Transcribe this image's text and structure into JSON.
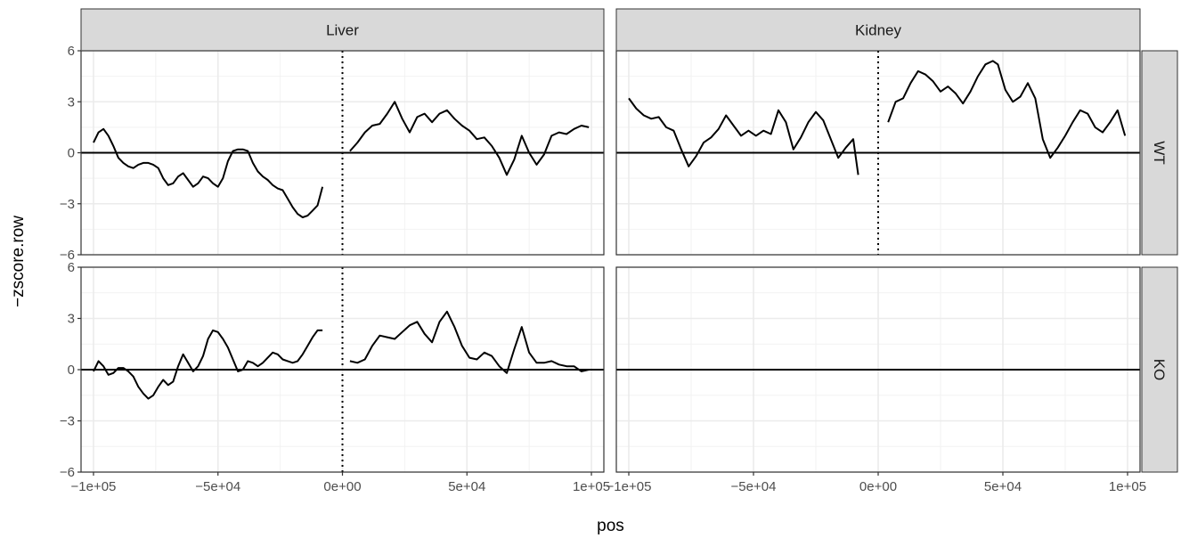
{
  "chart_data": {
    "type": "line",
    "xlabel": "pos",
    "ylabel": "−zscore.row",
    "xlim": [
      -105000,
      105000
    ],
    "ylim": [
      -6,
      6
    ],
    "x_ticks": [
      -100000,
      -50000,
      0,
      50000,
      100000
    ],
    "x_tick_labels": [
      "−1e+05",
      "−5e+04",
      "0e+00",
      "5e+04",
      "1e+05"
    ],
    "y_ticks": [
      -6,
      -3,
      0,
      3,
      6
    ],
    "y_tick_labels": [
      "−6",
      "−3",
      "0",
      "3",
      "6"
    ],
    "grid": true,
    "hline": 0,
    "vline": 0,
    "facet_columns": [
      "Liver",
      "Kidney"
    ],
    "facet_rows": [
      "WT",
      "KO"
    ],
    "panels": [
      {
        "column": "Liver",
        "row": "WT",
        "series": [
          {
            "x": [
              -100000,
              -98000,
              -96000,
              -94000,
              -92000,
              -90000,
              -88000,
              -86000,
              -84000,
              -82000,
              -80000,
              -78000,
              -76000,
              -74000,
              -72000,
              -70000,
              -68000,
              -66000,
              -64000,
              -62000,
              -60000,
              -58000,
              -56000,
              -54000,
              -52000,
              -50000,
              -48000,
              -46000,
              -44000,
              -42000,
              -40000,
              -38000,
              -36000,
              -34000,
              -32000,
              -30000,
              -28000,
              -26000,
              -24000,
              -22000,
              -20000,
              -18000,
              -16000,
              -14000,
              -12000,
              -10000,
              -8000
            ],
            "y": [
              0.6,
              1.2,
              1.4,
              1.0,
              0.4,
              -0.3,
              -0.6,
              -0.8,
              -0.9,
              -0.7,
              -0.6,
              -0.6,
              -0.7,
              -0.9,
              -1.5,
              -1.9,
              -1.8,
              -1.4,
              -1.2,
              -1.6,
              -2.0,
              -1.8,
              -1.4,
              -1.5,
              -1.8,
              -2.0,
              -1.5,
              -0.5,
              0.1,
              0.2,
              0.2,
              0.1,
              -0.6,
              -1.1,
              -1.4,
              -1.6,
              -1.9,
              -2.1,
              -2.2,
              -2.7,
              -3.2,
              -3.6,
              -3.8,
              -3.7,
              -3.4,
              -3.1,
              -2.0
            ]
          },
          {
            "x": [
              3000,
              6000,
              9000,
              12000,
              15000,
              18000,
              21000,
              24000,
              27000,
              30000,
              33000,
              36000,
              39000,
              42000,
              45000,
              48000,
              51000,
              54000,
              57000,
              60000,
              63000,
              66000,
              69000,
              72000,
              75000,
              78000,
              81000,
              84000,
              87000,
              90000,
              93000,
              96000,
              99000
            ],
            "y": [
              0.1,
              0.6,
              1.2,
              1.6,
              1.7,
              2.3,
              3.0,
              2.0,
              1.2,
              2.1,
              2.3,
              1.8,
              2.3,
              2.5,
              2.0,
              1.6,
              1.3,
              0.8,
              0.9,
              0.4,
              -0.3,
              -1.3,
              -0.4,
              1.0,
              0.0,
              -0.7,
              -0.1,
              1.0,
              1.2,
              1.1,
              1.4,
              1.6,
              1.5
            ]
          }
        ]
      },
      {
        "column": "Kidney",
        "row": "WT",
        "series": [
          {
            "x": [
              -100000,
              -97000,
              -94000,
              -91000,
              -88000,
              -85000,
              -82000,
              -79000,
              -76000,
              -73000,
              -70000,
              -67000,
              -64000,
              -61000,
              -58000,
              -55000,
              -52000,
              -49000,
              -46000,
              -43000,
              -40000,
              -37000,
              -34000,
              -31000,
              -28000,
              -25000,
              -22000,
              -19000,
              -16000,
              -13000,
              -10000,
              -8000
            ],
            "y": [
              3.2,
              2.6,
              2.2,
              2.0,
              2.1,
              1.5,
              1.3,
              0.2,
              -0.8,
              -0.2,
              0.6,
              0.9,
              1.4,
              2.2,
              1.6,
              1.0,
              1.3,
              1.0,
              1.3,
              1.1,
              2.5,
              1.8,
              0.2,
              0.9,
              1.8,
              2.4,
              1.9,
              0.8,
              -0.3,
              0.3,
              0.8,
              -1.3
            ]
          },
          {
            "x": [
              4000,
              7000,
              10000,
              13000,
              16000,
              19000,
              22000,
              25000,
              28000,
              31000,
              34000,
              37000,
              40000,
              43000,
              46000,
              48000,
              51000,
              54000,
              57000,
              60000,
              63000,
              66000,
              69000,
              72000,
              75000,
              78000,
              81000,
              84000,
              87000,
              90000,
              93000,
              96000,
              99000
            ],
            "y": [
              1.8,
              3.0,
              3.2,
              4.1,
              4.8,
              4.6,
              4.2,
              3.6,
              3.9,
              3.5,
              2.9,
              3.6,
              4.5,
              5.2,
              5.4,
              5.2,
              3.7,
              3.0,
              3.3,
              4.1,
              3.2,
              0.8,
              -0.3,
              0.3,
              1.0,
              1.8,
              2.5,
              2.3,
              1.5,
              1.2,
              1.8,
              2.5,
              1.0
            ]
          }
        ]
      },
      {
        "column": "Liver",
        "row": "KO",
        "series": [
          {
            "x": [
              -100000,
              -98000,
              -96000,
              -94000,
              -92000,
              -90000,
              -88000,
              -86000,
              -84000,
              -82000,
              -80000,
              -78000,
              -76000,
              -74000,
              -72000,
              -70000,
              -68000,
              -66000,
              -64000,
              -62000,
              -60000,
              -58000,
              -56000,
              -54000,
              -52000,
              -50000,
              -48000,
              -46000,
              -44000,
              -42000,
              -40000,
              -38000,
              -36000,
              -34000,
              -32000,
              -30000,
              -28000,
              -26000,
              -24000,
              -22000,
              -20000,
              -18000,
              -16000,
              -14000,
              -12000,
              -10000,
              -8000
            ],
            "y": [
              -0.1,
              0.5,
              0.2,
              -0.3,
              -0.2,
              0.1,
              0.1,
              -0.1,
              -0.4,
              -1.0,
              -1.4,
              -1.7,
              -1.5,
              -1.0,
              -0.6,
              -0.9,
              -0.7,
              0.2,
              0.9,
              0.4,
              -0.1,
              0.2,
              0.8,
              1.8,
              2.3,
              2.2,
              1.8,
              1.3,
              0.6,
              -0.1,
              0.0,
              0.5,
              0.4,
              0.2,
              0.4,
              0.7,
              1.0,
              0.9,
              0.6,
              0.5,
              0.4,
              0.5,
              0.9,
              1.4,
              1.9,
              2.3,
              2.3
            ]
          },
          {
            "x": [
              3000,
              6000,
              9000,
              12000,
              15000,
              18000,
              21000,
              24000,
              27000,
              30000,
              33000,
              36000,
              39000,
              42000,
              45000,
              48000,
              51000,
              54000,
              57000,
              60000,
              63000,
              66000,
              69000,
              72000,
              75000,
              78000,
              81000,
              84000,
              87000,
              90000,
              93000,
              96000,
              99000
            ],
            "y": [
              0.5,
              0.4,
              0.6,
              1.4,
              2.0,
              1.9,
              1.8,
              2.2,
              2.6,
              2.8,
              2.1,
              1.6,
              2.8,
              3.4,
              2.5,
              1.4,
              0.7,
              0.6,
              1.0,
              0.8,
              0.2,
              -0.2,
              1.2,
              2.5,
              1.0,
              0.4,
              0.4,
              0.5,
              0.3,
              0.2,
              0.2,
              -0.1,
              0.0
            ]
          }
        ]
      },
      {
        "column": "Kidney",
        "row": "KO",
        "series": []
      }
    ]
  }
}
